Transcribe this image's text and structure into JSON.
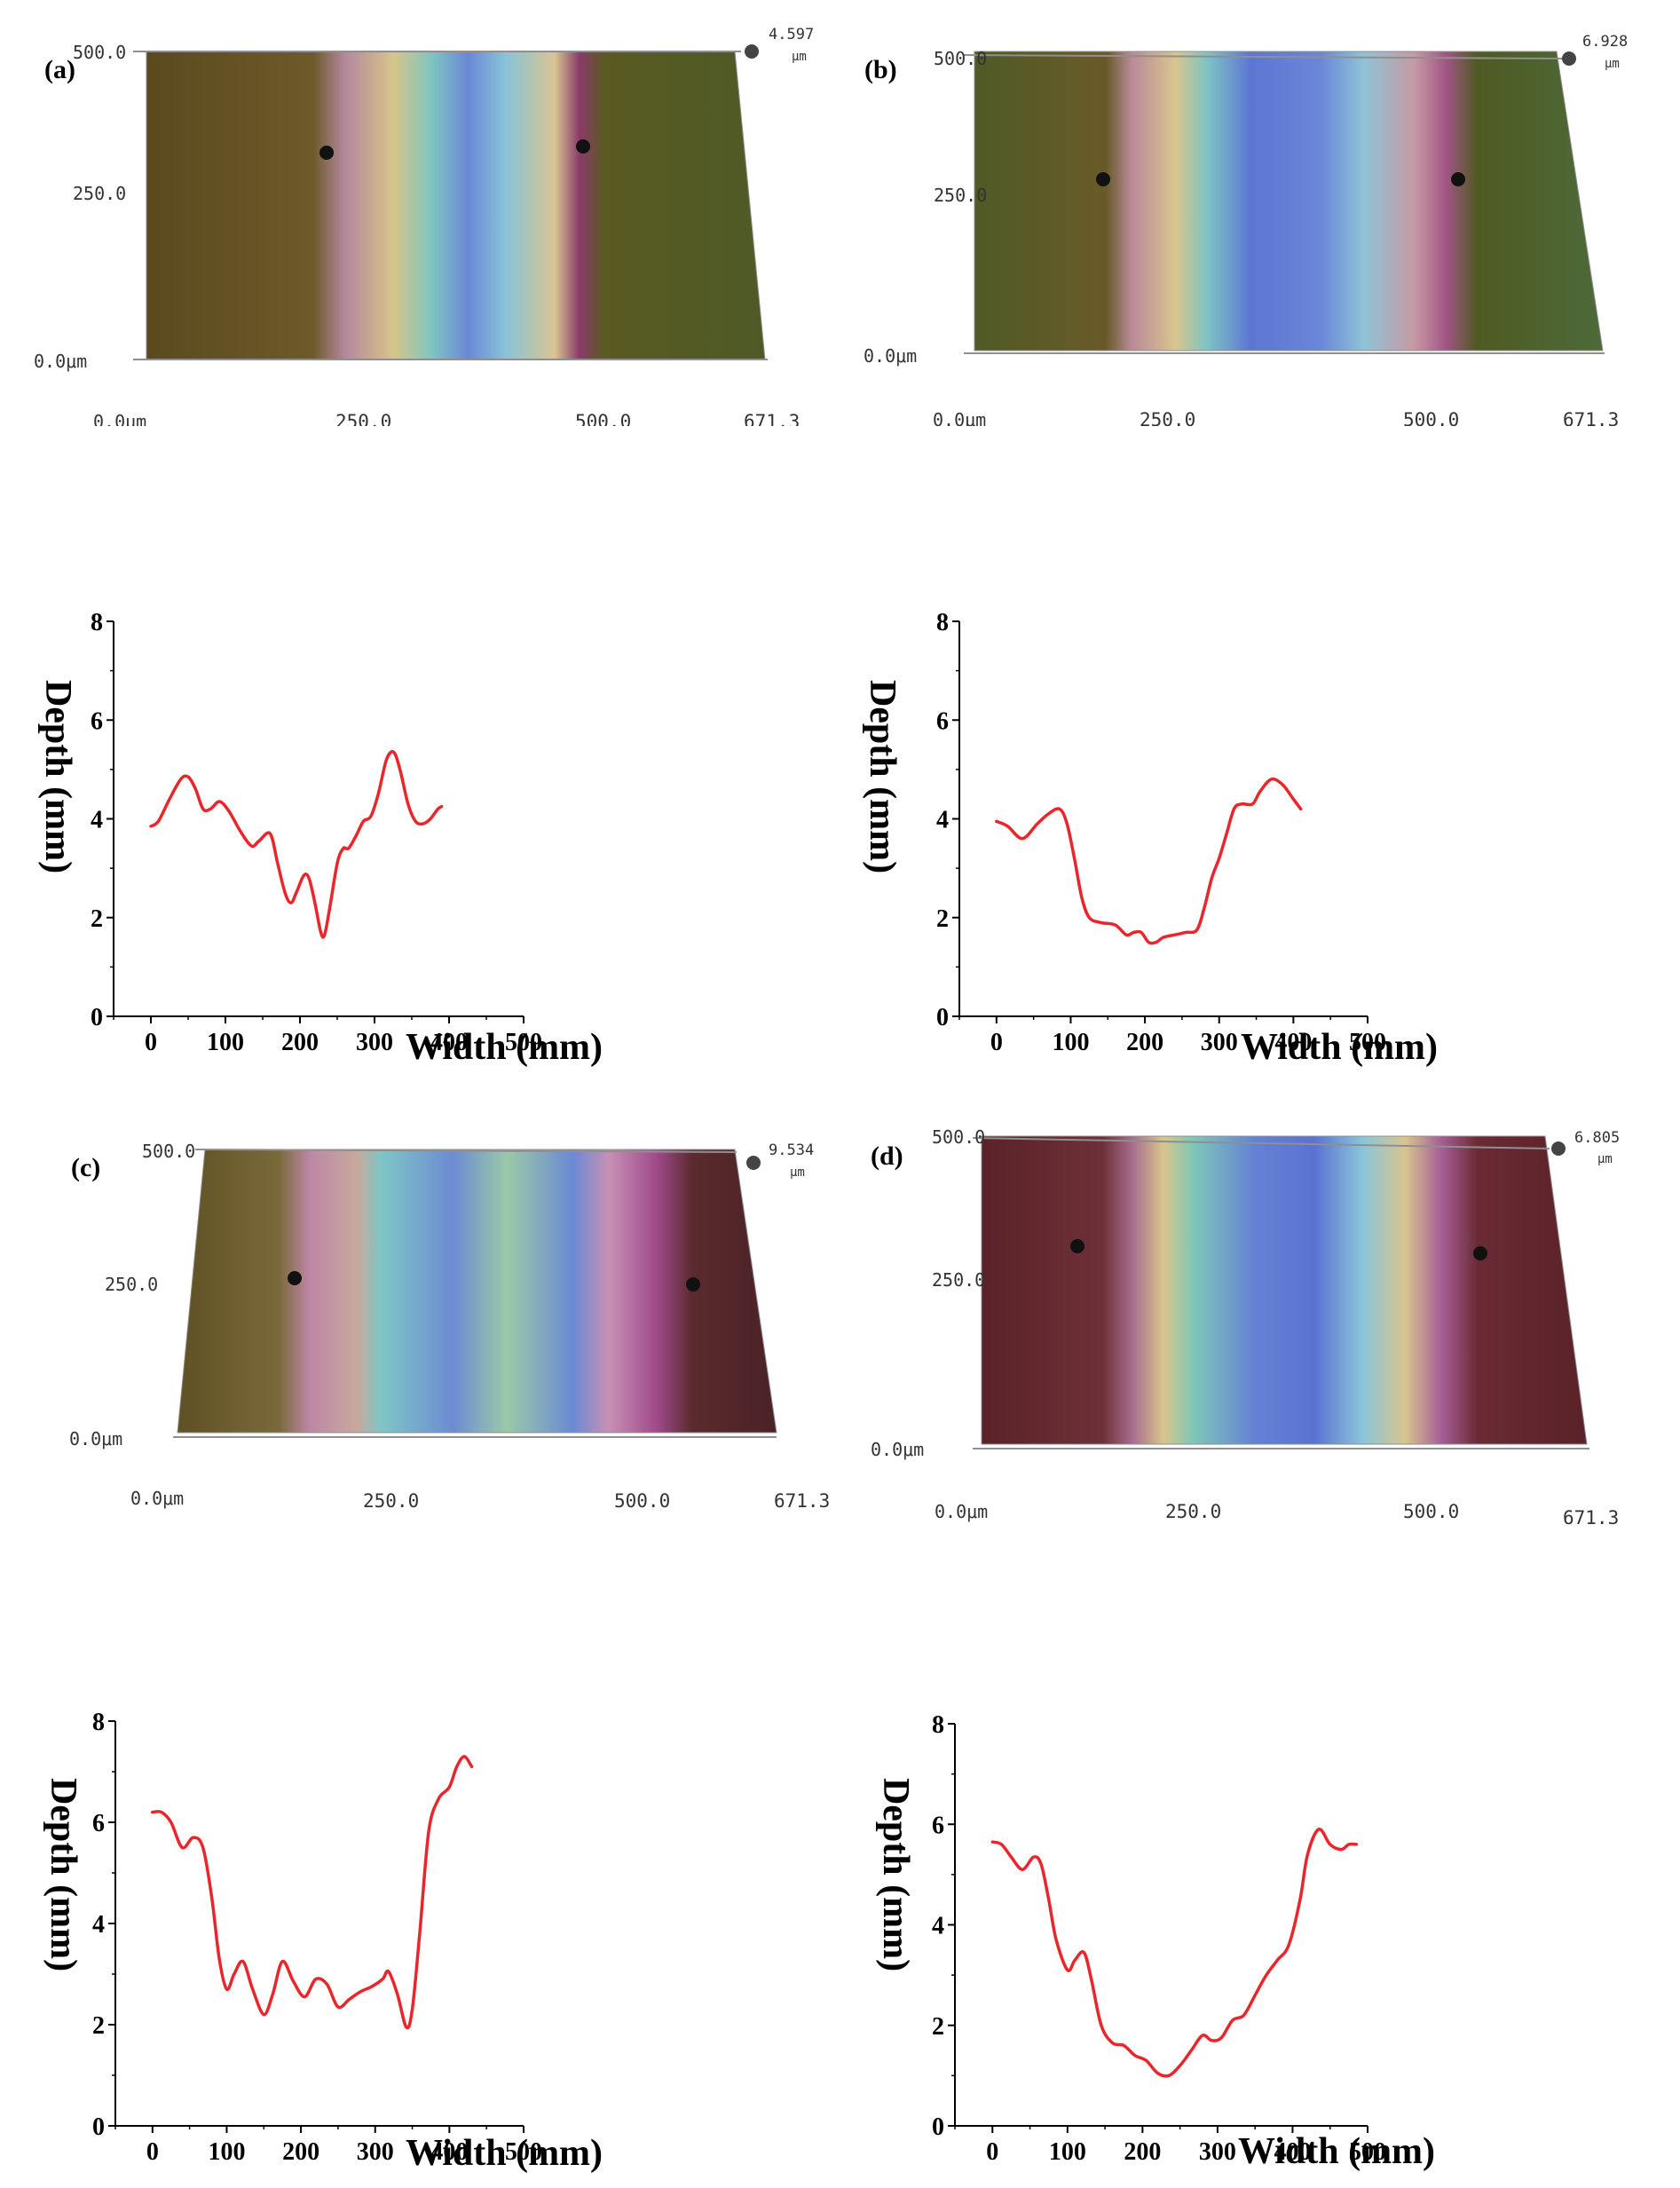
{
  "panels": [
    {
      "label": "(a)",
      "surface": {
        "y_ticks": [
          "500.0",
          "250.0",
          "0.0μm"
        ],
        "x_ticks": [
          "0.0μm",
          "250.0",
          "500.0",
          "671.3"
        ],
        "z_max": "4.597",
        "z_unit": "μm"
      }
    },
    {
      "label": "(b)",
      "surface": {
        "y_ticks": [
          "500.0",
          "250.0",
          "0.0μm"
        ],
        "x_ticks": [
          "0.0μm",
          "250.0",
          "500.0",
          "671.3"
        ],
        "z_max": "6.928",
        "z_unit": "μm"
      }
    },
    {
      "label": "(c)",
      "surface": {
        "y_ticks": [
          "500.0",
          "250.0",
          "0.0μm"
        ],
        "x_ticks": [
          "0.0μm",
          "250.0",
          "500.0",
          "671.3"
        ],
        "z_max": "9.534",
        "z_unit": "μm"
      }
    },
    {
      "label": "(d)",
      "surface": {
        "y_ticks": [
          "500.0",
          "250.0",
          "0.0μm"
        ],
        "x_ticks": [
          "0.0μm",
          "250.0",
          "500.0",
          "671.3"
        ],
        "z_max": "6.805",
        "z_unit": "μm"
      }
    }
  ],
  "chart_data": [
    {
      "type": "line",
      "panel": "a",
      "xlabel": "Width (mm)",
      "ylabel": "Depth (mm)",
      "xlim": [
        -50,
        500
      ],
      "ylim": [
        0,
        8
      ],
      "xticks": [
        0,
        100,
        200,
        300,
        400,
        500
      ],
      "yticks": [
        0,
        2,
        4,
        6,
        8
      ],
      "series": [
        {
          "name": "a",
          "color": "#e8262b",
          "x": [
            0,
            10,
            25,
            40,
            50,
            60,
            70,
            80,
            92,
            105,
            120,
            135,
            145,
            160,
            170,
            180,
            188,
            195,
            205,
            212,
            220,
            228,
            233,
            240,
            250,
            258,
            265,
            275,
            285,
            295,
            305,
            315,
            322,
            328,
            335,
            345,
            355,
            365,
            375,
            385,
            390
          ],
          "y": [
            3.85,
            3.95,
            4.4,
            4.8,
            4.85,
            4.6,
            4.2,
            4.2,
            4.35,
            4.15,
            3.75,
            3.45,
            3.55,
            3.7,
            3.1,
            2.5,
            2.3,
            2.5,
            2.85,
            2.8,
            2.3,
            1.7,
            1.65,
            2.2,
            3.1,
            3.4,
            3.4,
            3.65,
            3.95,
            4.05,
            4.5,
            5.15,
            5.35,
            5.3,
            4.95,
            4.3,
            3.95,
            3.9,
            4.0,
            4.2,
            4.25
          ]
        }
      ]
    },
    {
      "type": "line",
      "panel": "b",
      "xlabel": "Width (mm)",
      "ylabel": "Depth (mm)",
      "xlim": [
        -50,
        500
      ],
      "ylim": [
        0,
        8
      ],
      "xticks": [
        0,
        100,
        200,
        300,
        400,
        500
      ],
      "yticks": [
        0,
        2,
        4,
        6,
        8
      ],
      "series": [
        {
          "name": "b",
          "color": "#e8262b",
          "x": [
            0,
            15,
            35,
            55,
            70,
            85,
            95,
            105,
            115,
            125,
            140,
            160,
            175,
            185,
            195,
            205,
            215,
            225,
            240,
            255,
            270,
            280,
            290,
            300,
            310,
            320,
            330,
            345,
            355,
            370,
            385,
            400,
            410
          ],
          "y": [
            3.95,
            3.85,
            3.6,
            3.9,
            4.1,
            4.2,
            3.9,
            3.2,
            2.4,
            2.0,
            1.9,
            1.85,
            1.65,
            1.7,
            1.7,
            1.5,
            1.5,
            1.6,
            1.65,
            1.7,
            1.75,
            2.2,
            2.8,
            3.2,
            3.7,
            4.2,
            4.3,
            4.3,
            4.55,
            4.8,
            4.7,
            4.4,
            4.2
          ]
        }
      ]
    },
    {
      "type": "line",
      "panel": "c",
      "xlabel": "Width (mm)",
      "ylabel": "Depth (mm)",
      "xlim": [
        -50,
        500
      ],
      "ylim": [
        0,
        8
      ],
      "xticks": [
        0,
        100,
        200,
        300,
        400,
        500
      ],
      "yticks": [
        0,
        2,
        4,
        6,
        8
      ],
      "series": [
        {
          "name": "c",
          "color": "#e8262b",
          "x": [
            0,
            12,
            25,
            40,
            55,
            68,
            80,
            90,
            100,
            110,
            122,
            135,
            150,
            162,
            175,
            190,
            205,
            220,
            235,
            250,
            265,
            280,
            295,
            310,
            318,
            330,
            342,
            350,
            360,
            372,
            385,
            400,
            410,
            420,
            430
          ],
          "y": [
            6.2,
            6.2,
            6.0,
            5.5,
            5.7,
            5.5,
            4.5,
            3.3,
            2.7,
            3.0,
            3.25,
            2.7,
            2.2,
            2.6,
            3.25,
            2.85,
            2.55,
            2.9,
            2.8,
            2.35,
            2.5,
            2.65,
            2.75,
            2.9,
            3.05,
            2.6,
            1.95,
            2.3,
            3.8,
            5.8,
            6.45,
            6.7,
            7.1,
            7.3,
            7.1
          ]
        }
      ]
    },
    {
      "type": "line",
      "panel": "d",
      "xlabel": "Width (mm)",
      "ylabel": "Depth (mm)",
      "xlim": [
        -50,
        500
      ],
      "ylim": [
        0,
        8
      ],
      "xticks": [
        0,
        100,
        200,
        300,
        400,
        500
      ],
      "yticks": [
        0,
        2,
        4,
        6,
        8
      ],
      "series": [
        {
          "name": "d",
          "color": "#e8262b",
          "x": [
            0,
            12,
            25,
            40,
            55,
            65,
            75,
            85,
            100,
            110,
            122,
            132,
            145,
            160,
            175,
            190,
            205,
            220,
            235,
            250,
            265,
            280,
            292,
            305,
            320,
            335,
            350,
            365,
            380,
            395,
            410,
            420,
            435,
            450,
            465,
            475,
            485
          ],
          "y": [
            5.65,
            5.6,
            5.35,
            5.1,
            5.35,
            5.2,
            4.5,
            3.7,
            3.1,
            3.3,
            3.45,
            2.9,
            2.0,
            1.65,
            1.6,
            1.4,
            1.3,
            1.05,
            1.0,
            1.2,
            1.5,
            1.8,
            1.7,
            1.75,
            2.1,
            2.2,
            2.6,
            3.0,
            3.3,
            3.6,
            4.5,
            5.4,
            5.9,
            5.6,
            5.5,
            5.6,
            5.6
          ]
        }
      ]
    }
  ]
}
